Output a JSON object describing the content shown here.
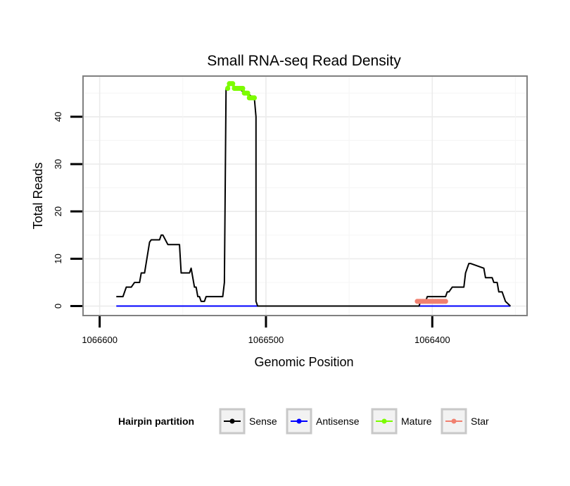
{
  "chart_data": {
    "type": "line",
    "title": "Small RNA-seq Read Density",
    "xlabel": "Genomic Position",
    "ylabel": "Total Reads",
    "xlim": [
      1066610,
      1066343
    ],
    "ylim": [
      -2,
      48.6
    ],
    "x_reversed": true,
    "x_ticks": [
      1066600,
      1066500,
      1066400
    ],
    "x_tick_labels": [
      "1066600",
      "1066500",
      "1066400"
    ],
    "y_ticks": [
      0,
      10,
      20,
      30,
      40
    ],
    "y_tick_labels": [
      "0",
      "10",
      "20",
      "30",
      "40"
    ],
    "grid": true,
    "legend": {
      "title": "Hairpin partition",
      "position": "bottom",
      "entries": [
        {
          "name": "Sense",
          "color": "#000000"
        },
        {
          "name": "Antisense",
          "color": "#0000ff"
        },
        {
          "name": "Mature",
          "color": "#7cfc00"
        },
        {
          "name": "Star",
          "color": "#f08070"
        }
      ]
    },
    "series": [
      {
        "name": "Sense",
        "color": "#000000",
        "style": "line",
        "x": [
          1066590,
          1066586,
          1066584,
          1066581,
          1066579,
          1066576,
          1066575,
          1066573,
          1066570,
          1066569,
          1066567,
          1066564,
          1066563,
          1066562,
          1066559,
          1066558,
          1066557,
          1066552,
          1066551,
          1066546,
          1066545,
          1066543,
          1066542,
          1066541,
          1066540,
          1066539,
          1066537,
          1066536,
          1066534,
          1066533,
          1066526,
          1066525,
          1066524,
          1066522,
          1066507,
          1066506,
          1066506,
          1066505,
          1066408,
          1066407,
          1066404,
          1066403,
          1066392,
          1066391,
          1066390,
          1066388,
          1066387,
          1066381,
          1066380,
          1066378,
          1066377,
          1066369,
          1066368,
          1066364,
          1066363,
          1066361,
          1066360,
          1066358,
          1066356,
          1066353
        ],
        "y": [
          2,
          2,
          4,
          4,
          5,
          5,
          7,
          7,
          13.5,
          14,
          14,
          14,
          15,
          15,
          13,
          13,
          13,
          13,
          7,
          7,
          8,
          4,
          4,
          2,
          2,
          1,
          1,
          2,
          2,
          2,
          2,
          5,
          46,
          47,
          44,
          40,
          1,
          0,
          0,
          1,
          1,
          2,
          2,
          3,
          3,
          4,
          4,
          4,
          7,
          9,
          9,
          8,
          6,
          6,
          5,
          5,
          3,
          3,
          1,
          0
        ]
      },
      {
        "name": "Antisense",
        "color": "#0000ff",
        "style": "line",
        "x": [
          1066590,
          1066353
        ],
        "y": [
          0,
          0
        ]
      },
      {
        "name": "Mature",
        "color": "#7cfc00",
        "style": "points",
        "x": [
          1066523,
          1066522,
          1066521,
          1066520,
          1066519,
          1066518,
          1066517,
          1066516,
          1066515,
          1066514,
          1066513,
          1066512,
          1066511,
          1066510,
          1066509,
          1066508,
          1066507
        ],
        "y": [
          46,
          47,
          47,
          47,
          46,
          46,
          46,
          46,
          46,
          46,
          45,
          45,
          45,
          44,
          44,
          44,
          44
        ]
      },
      {
        "name": "Star",
        "color": "#f08070",
        "style": "points",
        "x": [
          1066409,
          1066408,
          1066407,
          1066406,
          1066405,
          1066404,
          1066403,
          1066402,
          1066401,
          1066400,
          1066399,
          1066398,
          1066397,
          1066396,
          1066395,
          1066394,
          1066393,
          1066392
        ],
        "y": [
          1,
          1,
          1,
          1,
          1,
          1,
          1,
          1,
          1,
          1,
          1,
          1,
          1,
          1,
          1,
          1,
          1,
          1
        ]
      }
    ]
  }
}
